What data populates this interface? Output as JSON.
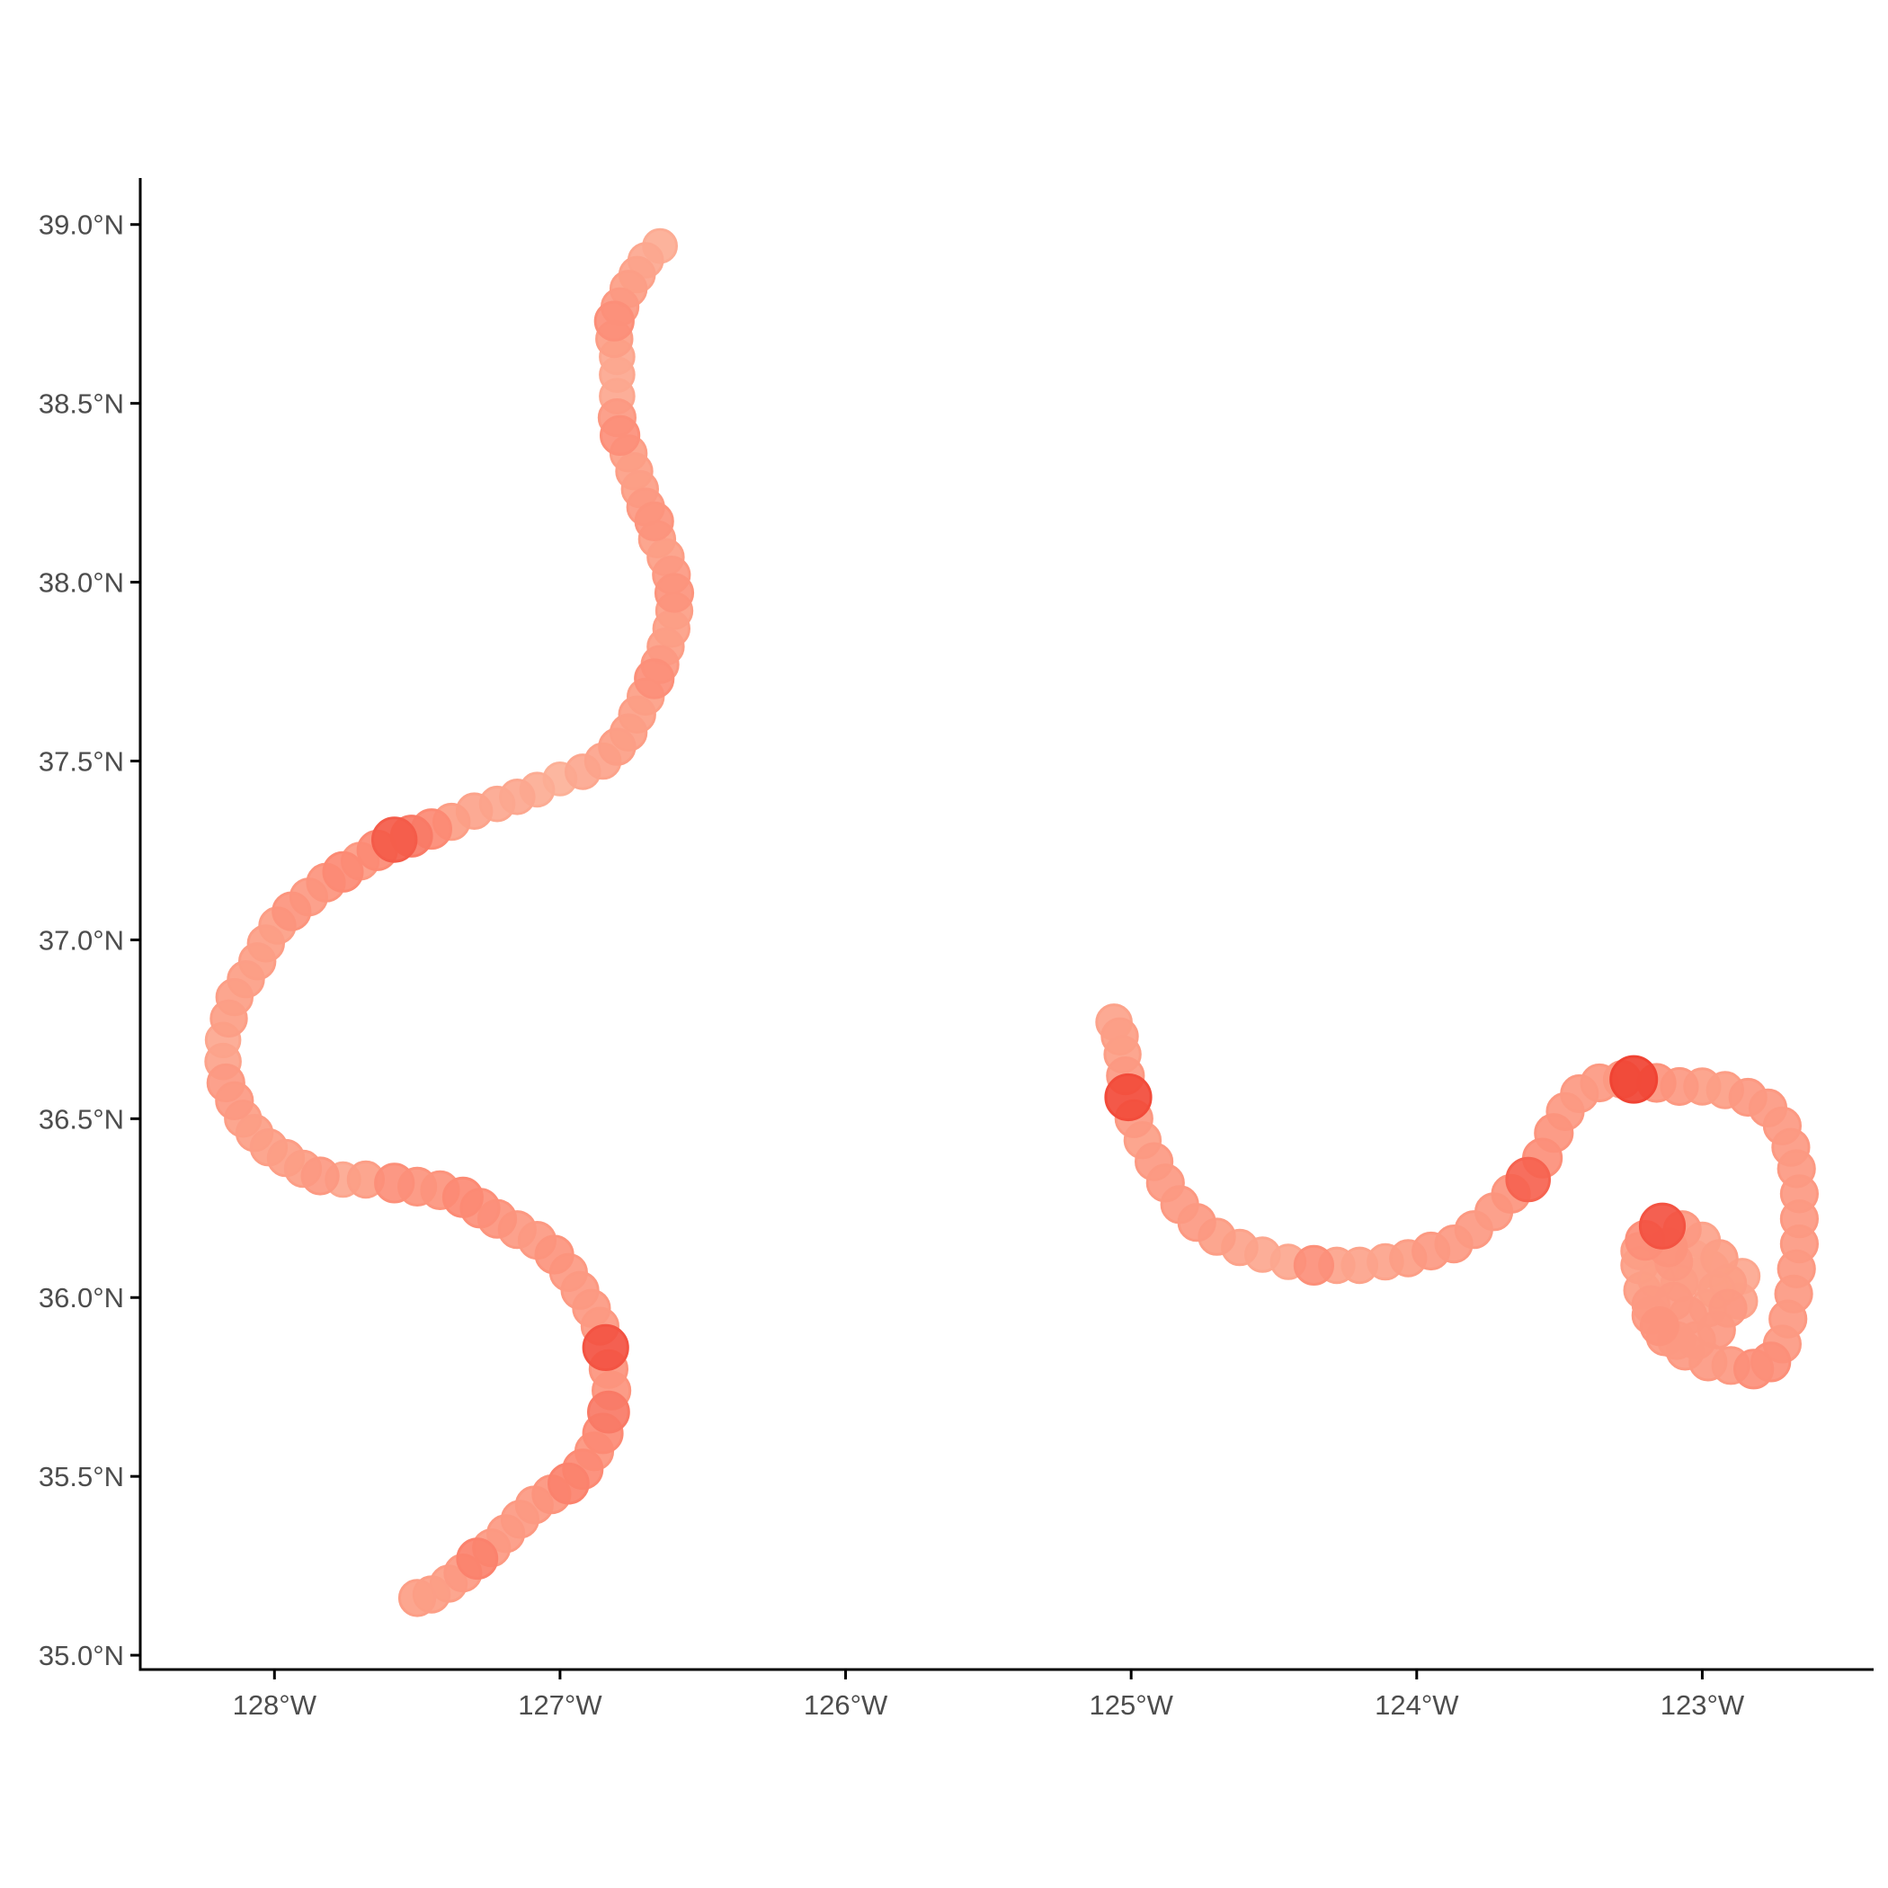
{
  "chart_data": {
    "type": "scatter",
    "title": "",
    "xlabel": "",
    "ylabel": "",
    "xlim": [
      -128.47,
      -122.4
    ],
    "ylim": [
      34.96,
      39.13
    ],
    "grid": false,
    "legend": "none",
    "x_ticks": [
      {
        "value": -128,
        "label": "128°W"
      },
      {
        "value": -127,
        "label": "127°W"
      },
      {
        "value": -126,
        "label": "126°W"
      },
      {
        "value": -125,
        "label": "125°W"
      },
      {
        "value": -124,
        "label": "124°W"
      },
      {
        "value": -123,
        "label": "123°W"
      }
    ],
    "y_ticks": [
      {
        "value": 35.0,
        "label": "35.0°N"
      },
      {
        "value": 35.5,
        "label": "35.5°N"
      },
      {
        "value": 36.0,
        "label": "36.0°N"
      },
      {
        "value": 36.5,
        "label": "36.5°N"
      },
      {
        "value": 37.0,
        "label": "37.0°N"
      },
      {
        "value": 37.5,
        "label": "37.5°N"
      },
      {
        "value": 38.0,
        "label": "38.0°N"
      },
      {
        "value": 38.5,
        "label": "38.5°N"
      },
      {
        "value": 39.0,
        "label": "39.0°N"
      }
    ],
    "colors": {
      "low": "#fcbba1",
      "mid": "#fc8a74",
      "high": "#ef3b2c"
    },
    "series": [
      {
        "points": [
          [
            -126.65,
            38.94,
            0.15
          ],
          [
            -126.7,
            38.9,
            0.2
          ],
          [
            -126.73,
            38.86,
            0.25
          ],
          [
            -126.76,
            38.82,
            0.3
          ],
          [
            -126.79,
            38.77,
            0.35
          ],
          [
            -126.81,
            38.73,
            0.45
          ],
          [
            -126.81,
            38.68,
            0.3
          ],
          [
            -126.8,
            38.63,
            0.2
          ],
          [
            -126.8,
            38.58,
            0.2
          ],
          [
            -126.8,
            38.52,
            0.2
          ],
          [
            -126.8,
            38.46,
            0.35
          ],
          [
            -126.79,
            38.41,
            0.45
          ],
          [
            -126.76,
            38.36,
            0.3
          ],
          [
            -126.74,
            38.31,
            0.3
          ],
          [
            -126.72,
            38.26,
            0.3
          ],
          [
            -126.7,
            38.21,
            0.35
          ],
          [
            -126.67,
            38.17,
            0.4
          ],
          [
            -126.66,
            38.12,
            0.3
          ],
          [
            -126.63,
            38.07,
            0.3
          ],
          [
            -126.61,
            38.02,
            0.35
          ],
          [
            -126.6,
            37.97,
            0.4
          ],
          [
            -126.6,
            37.92,
            0.3
          ],
          [
            -126.61,
            37.87,
            0.3
          ],
          [
            -126.63,
            37.82,
            0.3
          ],
          [
            -126.65,
            37.77,
            0.35
          ],
          [
            -126.67,
            37.73,
            0.45
          ],
          [
            -126.7,
            37.68,
            0.3
          ],
          [
            -126.73,
            37.63,
            0.3
          ],
          [
            -126.76,
            37.58,
            0.3
          ],
          [
            -126.8,
            37.54,
            0.3
          ],
          [
            -126.85,
            37.5,
            0.25
          ],
          [
            -126.92,
            37.47,
            0.2
          ],
          [
            -127.0,
            37.45,
            0.1
          ],
          [
            -127.08,
            37.42,
            0.15
          ],
          [
            -127.15,
            37.4,
            0.2
          ],
          [
            -127.22,
            37.38,
            0.2
          ],
          [
            -127.3,
            37.36,
            0.25
          ],
          [
            -127.38,
            37.33,
            0.3
          ],
          [
            -127.45,
            37.31,
            0.5
          ],
          [
            -127.52,
            37.29,
            0.6
          ],
          [
            -127.58,
            37.28,
            0.8
          ],
          [
            -127.64,
            37.25,
            0.5
          ],
          [
            -127.7,
            37.22,
            0.35
          ],
          [
            -127.76,
            37.19,
            0.5
          ],
          [
            -127.82,
            37.16,
            0.4
          ],
          [
            -127.88,
            37.12,
            0.35
          ],
          [
            -127.94,
            37.08,
            0.4
          ],
          [
            -127.99,
            37.04,
            0.3
          ],
          [
            -128.03,
            36.99,
            0.3
          ],
          [
            -128.06,
            36.94,
            0.3
          ],
          [
            -128.1,
            36.89,
            0.3
          ],
          [
            -128.14,
            36.84,
            0.3
          ],
          [
            -128.16,
            36.78,
            0.3
          ],
          [
            -128.18,
            36.72,
            0.2
          ],
          [
            -128.18,
            36.66,
            0.25
          ],
          [
            -128.17,
            36.6,
            0.35
          ],
          [
            -128.14,
            36.55,
            0.35
          ],
          [
            -128.11,
            36.5,
            0.3
          ],
          [
            -128.07,
            36.46,
            0.3
          ],
          [
            -128.02,
            36.42,
            0.3
          ],
          [
            -127.96,
            36.39,
            0.3
          ],
          [
            -127.9,
            36.36,
            0.3
          ],
          [
            -127.84,
            36.34,
            0.35
          ],
          [
            -127.76,
            36.33,
            0.2
          ],
          [
            -127.68,
            36.33,
            0.3
          ],
          [
            -127.58,
            36.32,
            0.45
          ],
          [
            -127.5,
            36.31,
            0.4
          ],
          [
            -127.42,
            36.3,
            0.4
          ],
          [
            -127.34,
            36.28,
            0.5
          ],
          [
            -127.28,
            36.25,
            0.45
          ],
          [
            -127.22,
            36.22,
            0.4
          ],
          [
            -127.15,
            36.19,
            0.35
          ],
          [
            -127.08,
            36.16,
            0.35
          ],
          [
            -127.02,
            36.12,
            0.4
          ],
          [
            -126.97,
            36.07,
            0.35
          ],
          [
            -126.93,
            36.02,
            0.35
          ],
          [
            -126.89,
            35.97,
            0.35
          ],
          [
            -126.86,
            35.92,
            0.35
          ],
          [
            -126.84,
            35.86,
            0.85
          ],
          [
            -126.83,
            35.8,
            0.4
          ],
          [
            -126.82,
            35.74,
            0.4
          ],
          [
            -126.83,
            35.68,
            0.6
          ],
          [
            -126.85,
            35.62,
            0.5
          ],
          [
            -126.88,
            35.57,
            0.4
          ],
          [
            -126.92,
            35.52,
            0.5
          ],
          [
            -126.97,
            35.48,
            0.55
          ],
          [
            -127.03,
            35.45,
            0.4
          ],
          [
            -127.09,
            35.42,
            0.35
          ],
          [
            -127.14,
            35.38,
            0.35
          ],
          [
            -127.19,
            35.34,
            0.35
          ],
          [
            -127.24,
            35.3,
            0.35
          ],
          [
            -127.29,
            35.27,
            0.55
          ],
          [
            -127.34,
            35.23,
            0.35
          ],
          [
            -127.39,
            35.2,
            0.3
          ],
          [
            -127.45,
            35.17,
            0.3
          ],
          [
            -127.5,
            35.16,
            0.3
          ]
        ]
      },
      {
        "points": [
          [
            -125.06,
            36.77,
            0.25
          ],
          [
            -125.04,
            36.73,
            0.3
          ],
          [
            -125.03,
            36.68,
            0.3
          ],
          [
            -125.02,
            36.62,
            0.35
          ],
          [
            -125.01,
            36.56,
            0.9
          ],
          [
            -124.99,
            36.5,
            0.35
          ],
          [
            -124.96,
            36.44,
            0.3
          ],
          [
            -124.92,
            36.38,
            0.35
          ],
          [
            -124.88,
            36.32,
            0.35
          ],
          [
            -124.83,
            36.26,
            0.35
          ],
          [
            -124.77,
            36.21,
            0.35
          ],
          [
            -124.7,
            36.17,
            0.3
          ],
          [
            -124.62,
            36.14,
            0.25
          ],
          [
            -124.54,
            36.12,
            0.2
          ],
          [
            -124.45,
            36.1,
            0.2
          ],
          [
            -124.36,
            36.09,
            0.45
          ],
          [
            -124.28,
            36.09,
            0.25
          ],
          [
            -124.2,
            36.09,
            0.25
          ],
          [
            -124.11,
            36.1,
            0.25
          ],
          [
            -124.03,
            36.11,
            0.3
          ],
          [
            -123.95,
            36.13,
            0.35
          ],
          [
            -123.87,
            36.15,
            0.35
          ],
          [
            -123.8,
            36.19,
            0.35
          ],
          [
            -123.73,
            36.24,
            0.35
          ],
          [
            -123.67,
            36.29,
            0.4
          ],
          [
            -123.61,
            36.33,
            0.75
          ],
          [
            -123.56,
            36.39,
            0.45
          ],
          [
            -123.52,
            36.46,
            0.4
          ],
          [
            -123.48,
            36.52,
            0.35
          ],
          [
            -123.43,
            36.57,
            0.35
          ],
          [
            -123.36,
            36.6,
            0.35
          ],
          [
            -123.28,
            36.61,
            0.35
          ],
          [
            -123.24,
            36.61,
            0.95
          ],
          [
            -123.16,
            36.6,
            0.4
          ],
          [
            -123.08,
            36.59,
            0.35
          ],
          [
            -123.0,
            36.59,
            0.3
          ],
          [
            -122.92,
            36.58,
            0.3
          ],
          [
            -122.84,
            36.56,
            0.35
          ],
          [
            -122.77,
            36.53,
            0.35
          ],
          [
            -122.72,
            36.48,
            0.35
          ],
          [
            -122.69,
            36.42,
            0.35
          ],
          [
            -122.67,
            36.36,
            0.35
          ],
          [
            -122.66,
            36.29,
            0.35
          ],
          [
            -122.66,
            36.22,
            0.35
          ],
          [
            -122.66,
            36.15,
            0.35
          ],
          [
            -122.67,
            36.08,
            0.35
          ],
          [
            -122.68,
            36.01,
            0.35
          ],
          [
            -122.7,
            35.94,
            0.35
          ],
          [
            -122.72,
            35.87,
            0.35
          ],
          [
            -122.76,
            35.82,
            0.45
          ],
          [
            -122.82,
            35.8,
            0.45
          ],
          [
            -122.9,
            35.81,
            0.35
          ],
          [
            -122.98,
            35.82,
            0.35
          ],
          [
            -123.06,
            35.85,
            0.35
          ],
          [
            -123.13,
            35.89,
            0.35
          ],
          [
            -123.18,
            35.95,
            0.35
          ],
          [
            -123.21,
            36.02,
            0.3
          ],
          [
            -123.22,
            36.09,
            0.3
          ],
          [
            -123.2,
            36.16,
            0.45
          ],
          [
            -123.14,
            36.2,
            0.85
          ],
          [
            -123.07,
            36.19,
            0.35
          ],
          [
            -123.0,
            36.16,
            0.25
          ],
          [
            -122.94,
            36.11,
            0.3
          ],
          [
            -122.91,
            36.04,
            0.3
          ],
          [
            -122.91,
            35.97,
            0.35
          ],
          [
            -122.95,
            35.91,
            0.35
          ],
          [
            -123.02,
            35.88,
            0.35
          ],
          [
            -123.09,
            35.88,
            0.35
          ],
          [
            -123.15,
            35.92,
            0.4
          ],
          [
            -123.18,
            35.98,
            0.35
          ],
          [
            -123.16,
            36.05,
            0.3
          ],
          [
            -123.1,
            36.1,
            0.35
          ],
          [
            -123.03,
            36.11,
            0.25
          ],
          [
            -122.97,
            36.08,
            0.25
          ],
          [
            -122.95,
            36.02,
            0.3
          ],
          [
            -122.98,
            35.97,
            0.3
          ],
          [
            -123.05,
            35.95,
            0.35
          ],
          [
            -123.1,
            35.99,
            0.35
          ],
          [
            -123.08,
            36.04,
            0.3
          ],
          [
            -123.03,
            36.06,
            0.25
          ],
          [
            -123.22,
            36.13,
            0.3
          ],
          [
            -122.87,
            35.99,
            0.25
          ],
          [
            -122.86,
            36.06,
            0.2
          ],
          [
            -123.12,
            36.14,
            0.4
          ]
        ]
      }
    ]
  }
}
